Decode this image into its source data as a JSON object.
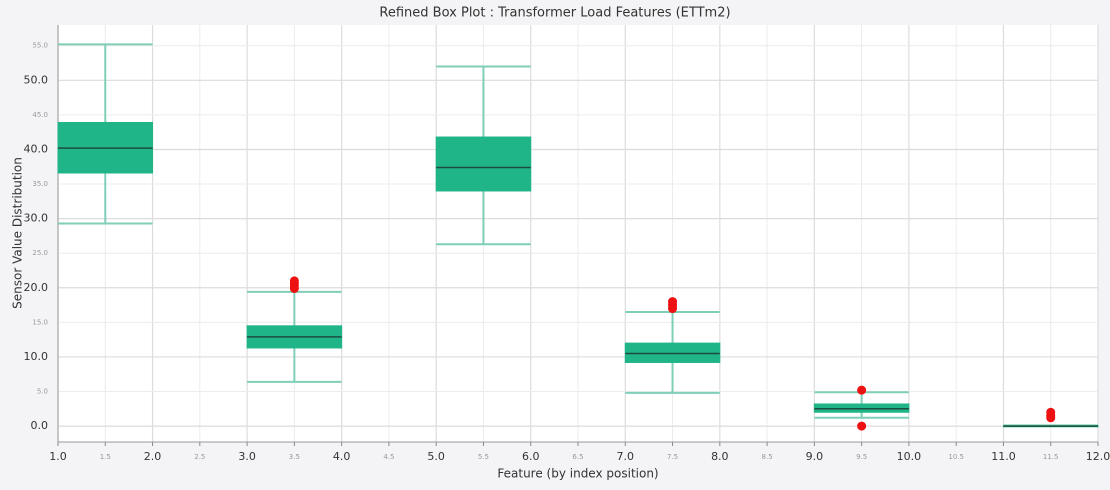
{
  "chart_data": {
    "type": "box",
    "title": "Refined Box Plot : Transformer Load Features (ETTm2)",
    "xlabel": "Feature (by index position)",
    "ylabel": "Sensor Value Distribution",
    "xlim": [
      1,
      12
    ],
    "ylim": [
      -2.3,
      58
    ],
    "xticks": [
      {
        "value": 1,
        "label": "1.0"
      },
      {
        "value": 1.5,
        "label": "1.5"
      },
      {
        "value": 2,
        "label": "2.0"
      },
      {
        "value": 2.5,
        "label": "2.5"
      },
      {
        "value": 3,
        "label": "3.0"
      },
      {
        "value": 3.5,
        "label": "3.5"
      },
      {
        "value": 4,
        "label": "4.0"
      },
      {
        "value": 4.5,
        "label": "4.5"
      },
      {
        "value": 5,
        "label": "5.0"
      },
      {
        "value": 5.5,
        "label": "5.5"
      },
      {
        "value": 6,
        "label": "6.0"
      },
      {
        "value": 6.5,
        "label": "6.5"
      },
      {
        "value": 7,
        "label": "7.0"
      },
      {
        "value": 7.5,
        "label": "7.5"
      },
      {
        "value": 8,
        "label": "8.0"
      },
      {
        "value": 8.5,
        "label": "8.5"
      },
      {
        "value": 9,
        "label": "9.0"
      },
      {
        "value": 9.5,
        "label": "9.5"
      },
      {
        "value": 10,
        "label": "10.0"
      },
      {
        "value": 10.5,
        "label": "10.5"
      },
      {
        "value": 11,
        "label": "11.0"
      },
      {
        "value": 11.5,
        "label": "11.5"
      },
      {
        "value": 12,
        "label": "12.0"
      }
    ],
    "yticks": [
      {
        "value": 0,
        "label": "0.0"
      },
      {
        "value": 5,
        "label": "5.0"
      },
      {
        "value": 10,
        "label": "10.0"
      },
      {
        "value": 15,
        "label": "15.0"
      },
      {
        "value": 20,
        "label": "20.0"
      },
      {
        "value": 25,
        "label": "25.0"
      },
      {
        "value": 30,
        "label": "30.0"
      },
      {
        "value": 35,
        "label": "35.0"
      },
      {
        "value": 40,
        "label": "40.0"
      },
      {
        "value": 45,
        "label": "45.0"
      },
      {
        "value": 50,
        "label": "50.0"
      },
      {
        "value": 55,
        "label": "55.0"
      }
    ],
    "grid": true,
    "box_color": "#20b589",
    "whisker_color": "#7fcfb8",
    "median_color": "#1d4d3e",
    "outlier_color": "#ee1111",
    "boxes": [
      {
        "position": 1.5,
        "low": 29.3,
        "q1": 36.6,
        "median": 40.2,
        "q3": 43.9,
        "high": 55.2,
        "outliers": []
      },
      {
        "position": 3.5,
        "low": 6.4,
        "q1": 11.3,
        "median": 12.9,
        "q3": 14.5,
        "high": 19.4,
        "outliers": [
          19.9,
          20.3,
          20.7,
          21.0
        ]
      },
      {
        "position": 5.5,
        "low": 26.3,
        "q1": 34.0,
        "median": 37.4,
        "q3": 41.8,
        "high": 52.0,
        "outliers": []
      },
      {
        "position": 7.5,
        "low": 4.8,
        "q1": 9.2,
        "median": 10.5,
        "q3": 12.0,
        "high": 16.5,
        "outliers": [
          17.0,
          17.5,
          18.0
        ]
      },
      {
        "position": 9.5,
        "low": 1.2,
        "q1": 2.0,
        "median": 2.5,
        "q3": 3.2,
        "high": 4.9,
        "outliers": [
          0.0,
          5.2
        ]
      },
      {
        "position": 11.5,
        "low": 0.0,
        "q1": 0.0,
        "median": 0.0,
        "q3": 0.05,
        "high": 0.1,
        "outliers": [
          1.2,
          1.5,
          2.0
        ]
      }
    ]
  }
}
